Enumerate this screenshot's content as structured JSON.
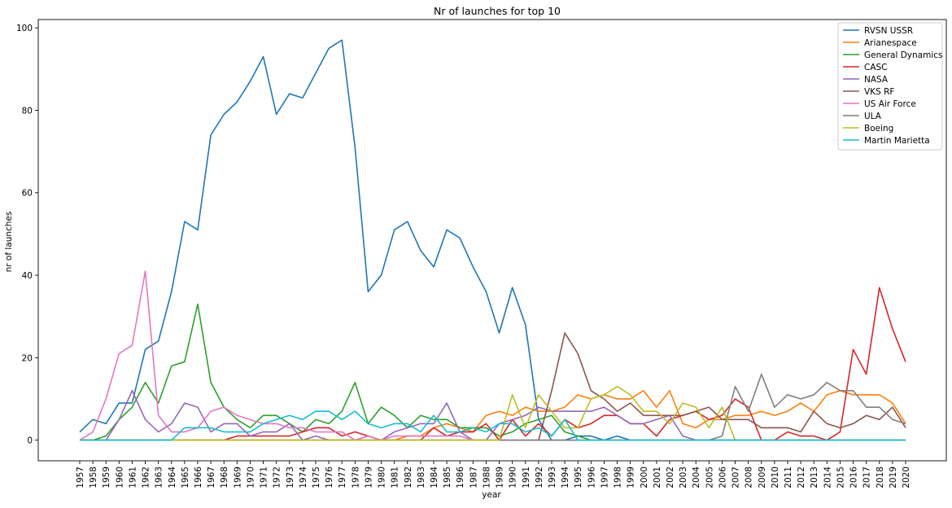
{
  "chart_data": {
    "type": "line",
    "title": "Nr of launches for top 10",
    "xlabel": "year",
    "ylabel": "nr of launches",
    "ylim": [
      -5,
      102
    ],
    "yticks": [
      0,
      20,
      40,
      60,
      80,
      100
    ],
    "grid": false,
    "legend_position": "top-right",
    "x": [
      1957,
      1958,
      1959,
      1960,
      1961,
      1962,
      1963,
      1964,
      1965,
      1966,
      1967,
      1968,
      1969,
      1970,
      1971,
      1972,
      1973,
      1974,
      1975,
      1976,
      1977,
      1978,
      1979,
      1980,
      1981,
      1982,
      1983,
      1984,
      1985,
      1986,
      1987,
      1988,
      1989,
      1990,
      1991,
      1992,
      1993,
      1994,
      1995,
      1996,
      1997,
      1998,
      1999,
      2000,
      2001,
      2002,
      2003,
      2004,
      2005,
      2006,
      2007,
      2008,
      2009,
      2010,
      2011,
      2012,
      2013,
      2014,
      2015,
      2016,
      2017,
      2018,
      2019,
      2020
    ],
    "series": [
      {
        "name": "RVSN USSR",
        "color": "#1f77b4",
        "values": [
          2,
          5,
          4,
          9,
          9,
          22,
          24,
          36,
          53,
          51,
          74,
          79,
          82,
          87,
          93,
          79,
          84,
          83,
          89,
          95,
          97,
          71,
          36,
          40,
          51,
          53,
          46,
          42,
          51,
          49,
          42,
          36,
          26,
          37,
          28,
          5,
          0,
          0,
          1,
          1,
          0,
          1,
          0,
          0,
          0,
          0,
          0,
          0,
          0,
          0,
          0,
          0,
          0,
          0,
          0,
          0,
          0,
          0,
          0,
          0,
          0,
          0,
          0,
          0
        ]
      },
      {
        "name": "Arianespace",
        "color": "#ff7f0e",
        "values": [
          0,
          0,
          0,
          0,
          0,
          0,
          0,
          0,
          0,
          0,
          0,
          0,
          0,
          0,
          0,
          0,
          0,
          0,
          0,
          0,
          0,
          0,
          0,
          0,
          0,
          1,
          1,
          3,
          4,
          3,
          2,
          6,
          7,
          6,
          8,
          7,
          7,
          8,
          11,
          10,
          11,
          10,
          10,
          12,
          8,
          12,
          4,
          3,
          5,
          5,
          6,
          6,
          7,
          6,
          7,
          9,
          7,
          11,
          12,
          11,
          11,
          11,
          9,
          4
        ]
      },
      {
        "name": "General Dynamics",
        "color": "#2ca02c",
        "values": [
          0,
          0,
          1,
          5,
          8,
          14,
          9,
          18,
          19,
          33,
          14,
          8,
          5,
          3,
          6,
          6,
          4,
          2,
          5,
          4,
          7,
          14,
          4,
          8,
          6,
          3,
          6,
          5,
          5,
          3,
          3,
          3,
          1,
          2,
          4,
          5,
          6,
          2,
          1,
          0,
          0,
          0,
          0,
          0,
          0,
          0,
          0,
          0,
          0,
          0,
          0,
          0,
          0,
          0,
          0,
          0,
          0,
          0,
          0,
          0,
          0,
          0,
          0,
          0
        ]
      },
      {
        "name": "CASC",
        "color": "#d62728",
        "values": [
          0,
          0,
          0,
          0,
          0,
          0,
          0,
          0,
          0,
          0,
          0,
          0,
          1,
          1,
          1,
          1,
          1,
          2,
          3,
          3,
          1,
          2,
          1,
          0,
          0,
          0,
          0,
          3,
          1,
          2,
          2,
          4,
          0,
          5,
          1,
          4,
          1,
          5,
          3,
          4,
          6,
          6,
          4,
          4,
          1,
          5,
          6,
          7,
          5,
          6,
          10,
          8,
          0,
          0,
          2,
          1,
          1,
          0,
          2,
          22,
          16,
          37,
          27,
          19
        ]
      },
      {
        "name": "NASA",
        "color": "#9467bd",
        "values": [
          0,
          0,
          0,
          5,
          12,
          5,
          2,
          4,
          9,
          8,
          2,
          4,
          4,
          1,
          2,
          2,
          4,
          0,
          1,
          0,
          0,
          0,
          1,
          0,
          2,
          3,
          4,
          4,
          9,
          2,
          0,
          0,
          4,
          5,
          6,
          8,
          7,
          7,
          7,
          7,
          8,
          6,
          4,
          4,
          5,
          6,
          1,
          0,
          0,
          0,
          0,
          0,
          0,
          0,
          0,
          0,
          0,
          0,
          0,
          0,
          0,
          0,
          0,
          0
        ]
      },
      {
        "name": "VKS RF",
        "color": "#8c564b",
        "values": [
          0,
          0,
          0,
          0,
          0,
          0,
          0,
          0,
          0,
          0,
          0,
          0,
          0,
          0,
          0,
          0,
          0,
          0,
          0,
          0,
          0,
          0,
          0,
          0,
          0,
          0,
          0,
          0,
          0,
          0,
          0,
          0,
          0,
          0,
          0,
          0,
          12,
          26,
          21,
          12,
          10,
          7,
          9,
          6,
          6,
          6,
          6,
          7,
          8,
          5,
          5,
          5,
          3,
          3,
          3,
          2,
          7,
          4,
          3,
          4,
          6,
          5,
          8,
          3
        ]
      },
      {
        "name": "US Air Force",
        "color": "#e377c2",
        "values": [
          0,
          2,
          10,
          21,
          23,
          41,
          6,
          2,
          2,
          3,
          7,
          8,
          6,
          5,
          4,
          4,
          3,
          3,
          2,
          2,
          2,
          0,
          1,
          0,
          1,
          1,
          1,
          1,
          1,
          1,
          0,
          0,
          0,
          0,
          0,
          0,
          0,
          0,
          0,
          0,
          0,
          0,
          0,
          0,
          0,
          0,
          0,
          0,
          0,
          0,
          0,
          0,
          0,
          0,
          0,
          0,
          0,
          0,
          0,
          0,
          0,
          0,
          0,
          0
        ]
      },
      {
        "name": "ULA",
        "color": "#7f7f7f",
        "values": [
          0,
          0,
          0,
          0,
          0,
          0,
          0,
          0,
          0,
          0,
          0,
          0,
          0,
          0,
          0,
          0,
          0,
          0,
          0,
          0,
          0,
          0,
          0,
          0,
          0,
          0,
          0,
          0,
          0,
          0,
          0,
          0,
          0,
          0,
          0,
          0,
          0,
          0,
          0,
          0,
          0,
          0,
          0,
          0,
          0,
          0,
          0,
          0,
          0,
          1,
          13,
          7,
          16,
          8,
          11,
          10,
          11,
          14,
          12,
          12,
          8,
          8,
          5,
          4
        ]
      },
      {
        "name": "Boeing",
        "color": "#bcbd22",
        "values": [
          0,
          0,
          0,
          0,
          0,
          0,
          0,
          0,
          0,
          0,
          0,
          0,
          0,
          0,
          0,
          0,
          0,
          0,
          0,
          0,
          0,
          0,
          0,
          0,
          0,
          0,
          0,
          0,
          0,
          0,
          0,
          0,
          0,
          11,
          3,
          11,
          7,
          3,
          3,
          10,
          11,
          13,
          11,
          7,
          7,
          4,
          9,
          8,
          3,
          8,
          0,
          0,
          0,
          0,
          0,
          0,
          0,
          0,
          0,
          0,
          0,
          0,
          0,
          0
        ]
      },
      {
        "name": "Martin Marietta",
        "color": "#17becf",
        "values": [
          0,
          0,
          0,
          0,
          0,
          0,
          0,
          0,
          3,
          3,
          3,
          2,
          2,
          2,
          4,
          5,
          6,
          5,
          7,
          7,
          5,
          7,
          4,
          3,
          4,
          4,
          2,
          6,
          2,
          2,
          3,
          2,
          4,
          4,
          2,
          3,
          1,
          5,
          0,
          0,
          0,
          0,
          0,
          0,
          0,
          0,
          0,
          0,
          0,
          0,
          0,
          0,
          0,
          0,
          0,
          0,
          0,
          0,
          0,
          0,
          0,
          0,
          0,
          0
        ]
      }
    ]
  }
}
